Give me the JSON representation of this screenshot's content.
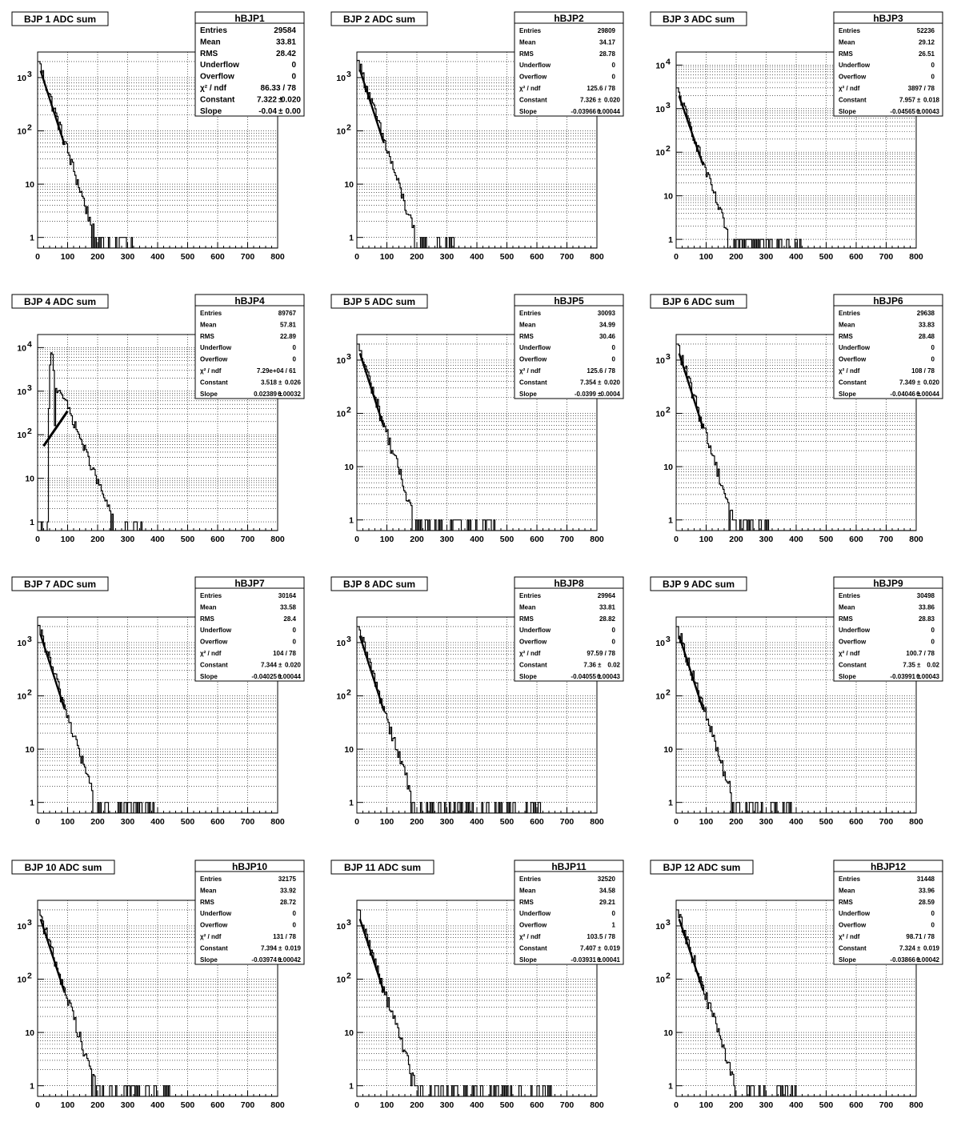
{
  "x_axis_ticks": [
    "0",
    "100",
    "200",
    "300",
    "400",
    "500",
    "600",
    "700",
    "800"
  ],
  "y_axis_ticks": {
    "to_1e3": [
      "1",
      "10",
      "10^2",
      "10^3"
    ],
    "to_1e4": [
      "1",
      "10",
      "10^2",
      "10^3",
      "10^4"
    ]
  },
  "stats_labels": [
    "Entries",
    "Mean",
    "RMS",
    "Underflow",
    "Overflow",
    "χ² / ndf",
    "Constant",
    "Slope"
  ],
  "colors": {
    "histogram": "#000000",
    "background": "#ffffff",
    "grid": "#000000"
  },
  "chart_data": [
    {
      "type": "histogram",
      "title": "BJP 1 ADC sum",
      "stats_name": "hBJP1",
      "xlim": [
        0,
        800
      ],
      "ylog": true,
      "ylim": [
        0.5,
        3000
      ],
      "grid": true,
      "legend_position": "top-right",
      "peak": 2000,
      "slope": -0.04,
      "tail_end": 330,
      "stats": {
        "entries": "29584",
        "mean": "33.81",
        "rms": "28.42",
        "underflow": "0",
        "overflow": "0",
        "chi2ndf": "86.33 / 78",
        "constant": "7.322",
        "constant_err": "0.020",
        "slope": "-0.04",
        "slope_err": "0.00"
      }
    },
    {
      "type": "histogram",
      "title": "BJP 2 ADC sum",
      "stats_name": "hBJP2",
      "xlim": [
        0,
        800
      ],
      "ylog": true,
      "ylim": [
        0.5,
        3000
      ],
      "grid": true,
      "legend_position": "top-right",
      "peak": 2100,
      "slope": -0.03966,
      "tail_end": 330,
      "stats": {
        "entries": "29809",
        "mean": "34.17",
        "rms": "28.78",
        "underflow": "0",
        "overflow": "0",
        "chi2ndf": "125.6 / 78",
        "constant": "7.326",
        "constant_err": "0.020",
        "slope": "-0.03966",
        "slope_err": "0.00044"
      }
    },
    {
      "type": "histogram",
      "title": "BJP 3 ADC sum",
      "stats_name": "hBJP3",
      "xlim": [
        0,
        800
      ],
      "ylog": true,
      "ylim": [
        0.5,
        20000
      ],
      "grid": true,
      "legend_position": "top-right",
      "peak": 3000,
      "slope": -0.04565,
      "tail_end": 430,
      "stats": {
        "entries": "52236",
        "mean": "29.12",
        "rms": "26.51",
        "underflow": "0",
        "overflow": "0",
        "chi2ndf": "3897 / 78",
        "constant": "7.957",
        "constant_err": "0.018",
        "slope": "-0.04565",
        "slope_err": "0.00043"
      }
    },
    {
      "type": "histogram",
      "title": "BJP 4 ADC sum",
      "stats_name": "hBJP4",
      "xlim": [
        0,
        800
      ],
      "ylog": true,
      "ylim": [
        0.5,
        20000
      ],
      "grid": true,
      "legend_position": "top-right",
      "peak": 10000,
      "slope": -0.0393,
      "tail_end": 360,
      "special": "peaked",
      "fit_line": [
        [
          20,
          55
        ],
        [
          100,
          350
        ]
      ],
      "stats": {
        "entries": "89767",
        "mean": "57.81",
        "rms": "22.89",
        "underflow": "0",
        "overflow": "0",
        "chi2ndf": "7.29e+04 / 61",
        "constant": "3.518",
        "constant_err": "0.026",
        "slope": "0.02389",
        "slope_err": "0.00032"
      }
    },
    {
      "type": "histogram",
      "title": "BJP 5 ADC sum",
      "stats_name": "hBJP5",
      "xlim": [
        0,
        800
      ],
      "ylog": true,
      "ylim": [
        0.5,
        3000
      ],
      "grid": true,
      "legend_position": "top-right",
      "peak": 2000,
      "slope": -0.0399,
      "tail_end": 460,
      "stats": {
        "entries": "30093",
        "mean": "34.99",
        "rms": "30.46",
        "underflow": "0",
        "overflow": "0",
        "chi2ndf": "125.6 / 78",
        "constant": "7.354",
        "constant_err": "0.020",
        "slope": "-0.0399",
        "slope_err": "0.0004"
      }
    },
    {
      "type": "histogram",
      "title": "BJP 6 ADC sum",
      "stats_name": "hBJP6",
      "xlim": [
        0,
        800
      ],
      "ylog": true,
      "ylim": [
        0.5,
        3000
      ],
      "grid": true,
      "legend_position": "top-right",
      "peak": 2000,
      "slope": -0.04046,
      "tail_end": 310,
      "stats": {
        "entries": "29638",
        "mean": "33.83",
        "rms": "28.48",
        "underflow": "0",
        "overflow": "0",
        "chi2ndf": "108 / 78",
        "constant": "7.349",
        "constant_err": "0.020",
        "slope": "-0.04046",
        "slope_err": "0.00044"
      }
    },
    {
      "type": "histogram",
      "title": "BJP 7 ADC sum",
      "stats_name": "hBJP7",
      "xlim": [
        0,
        800
      ],
      "ylog": true,
      "ylim": [
        0.5,
        3000
      ],
      "grid": true,
      "legend_position": "top-right",
      "peak": 2100,
      "slope": -0.04025,
      "tail_end": 390,
      "stats": {
        "entries": "30164",
        "mean": "33.58",
        "rms": "28.4",
        "underflow": "0",
        "overflow": "0",
        "chi2ndf": "104 / 78",
        "constant": "7.344",
        "constant_err": "0.020",
        "slope": "-0.04025",
        "slope_err": "0.00044"
      }
    },
    {
      "type": "histogram",
      "title": "BJP 8 ADC sum",
      "stats_name": "hBJP8",
      "xlim": [
        0,
        800
      ],
      "ylog": true,
      "ylim": [
        0.5,
        3000
      ],
      "grid": true,
      "legend_position": "top-right",
      "peak": 2000,
      "slope": -0.04055,
      "tail_end": 630,
      "stats": {
        "entries": "29964",
        "mean": "33.81",
        "rms": "28.82",
        "underflow": "0",
        "overflow": "0",
        "chi2ndf": "97.59 / 78",
        "constant": "7.36",
        "constant_err": "0.02",
        "slope": "-0.04055",
        "slope_err": "0.00043"
      }
    },
    {
      "type": "histogram",
      "title": "BJP 9 ADC sum",
      "stats_name": "hBJP9",
      "xlim": [
        0,
        800
      ],
      "ylog": true,
      "ylim": [
        0.5,
        3000
      ],
      "grid": true,
      "legend_position": "top-right",
      "peak": 2000,
      "slope": -0.03991,
      "tail_end": 400,
      "stats": {
        "entries": "30498",
        "mean": "33.86",
        "rms": "28.83",
        "underflow": "0",
        "overflow": "0",
        "chi2ndf": "100.7 / 78",
        "constant": "7.35",
        "constant_err": "0.02",
        "slope": "-0.03991",
        "slope_err": "0.00043"
      }
    },
    {
      "type": "histogram",
      "title": "BJP 10 ADC sum",
      "stats_name": "hBJP10",
      "xlim": [
        0,
        800
      ],
      "ylog": true,
      "ylim": [
        0.5,
        3000
      ],
      "grid": true,
      "legend_position": "top-right",
      "peak": 2000,
      "slope": -0.03974,
      "tail_end": 440,
      "stats": {
        "entries": "32175",
        "mean": "33.92",
        "rms": "28.72",
        "underflow": "0",
        "overflow": "0",
        "chi2ndf": "131 / 78",
        "constant": "7.394",
        "constant_err": "0.019",
        "slope": "-0.03974",
        "slope_err": "0.00042"
      }
    },
    {
      "type": "histogram",
      "title": "BJP 11 ADC sum",
      "stats_name": "hBJP11",
      "xlim": [
        0,
        800
      ],
      "ylog": true,
      "ylim": [
        0.5,
        3000
      ],
      "grid": true,
      "legend_position": "top-right",
      "peak": 2000,
      "slope": -0.03931,
      "tail_end": 650,
      "stats": {
        "entries": "32520",
        "mean": "34.58",
        "rms": "29.21",
        "underflow": "0",
        "overflow": "1",
        "chi2ndf": "103.5 / 78",
        "constant": "7.407",
        "constant_err": "0.019",
        "slope": "-0.03931",
        "slope_err": "0.00041"
      }
    },
    {
      "type": "histogram",
      "title": "BJP 12 ADC sum",
      "stats_name": "hBJP12",
      "xlim": [
        0,
        800
      ],
      "ylog": true,
      "ylim": [
        0.5,
        3000
      ],
      "grid": true,
      "legend_position": "top-right",
      "peak": 2000,
      "slope": -0.03866,
      "tail_end": 410,
      "stats": {
        "entries": "31448",
        "mean": "33.96",
        "rms": "28.59",
        "underflow": "0",
        "overflow": "0",
        "chi2ndf": "98.71 / 78",
        "constant": "7.324",
        "constant_err": "0.019",
        "slope": "-0.03866",
        "slope_err": "0.00042"
      }
    }
  ]
}
